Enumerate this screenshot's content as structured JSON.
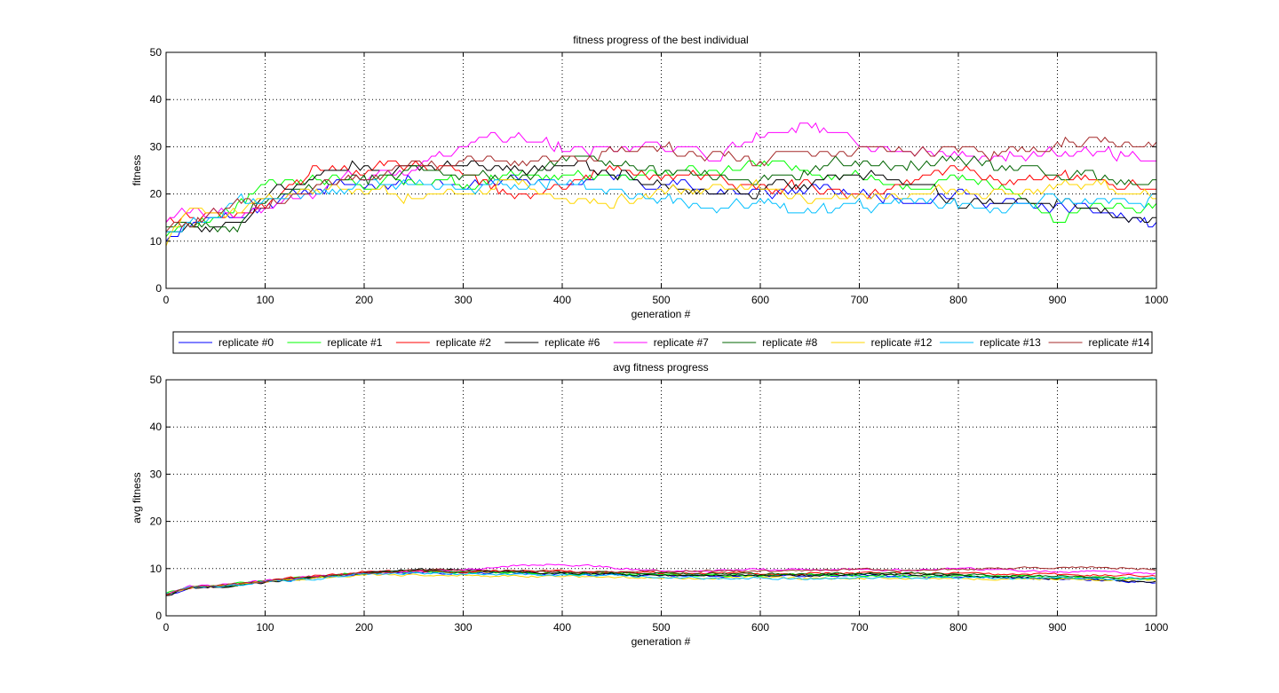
{
  "chart_data": [
    {
      "type": "line",
      "title": "fitness progress of the best individual",
      "xlabel": "generation #",
      "ylabel": "fitness",
      "xlim": [
        0,
        1000
      ],
      "ylim": [
        0,
        50
      ],
      "xticks": [
        0,
        100,
        200,
        300,
        400,
        500,
        600,
        700,
        800,
        900,
        1000
      ],
      "yticks": [
        0,
        10,
        20,
        30,
        40,
        50
      ],
      "grid": true,
      "series": [
        {
          "name": "replicate #0",
          "color": "#0000ff",
          "x": [
            0,
            25,
            50,
            75,
            100,
            150,
            200,
            250,
            300,
            350,
            400,
            450,
            500,
            550,
            600,
            650,
            700,
            750,
            800,
            850,
            900,
            950,
            1000
          ],
          "y": [
            11,
            14,
            16,
            15,
            18,
            21,
            22,
            23,
            22,
            23,
            22,
            24,
            22,
            21,
            20,
            21,
            20,
            19,
            20,
            18,
            17,
            16,
            13
          ]
        },
        {
          "name": "replicate #1",
          "color": "#00ff00",
          "x": [
            0,
            25,
            50,
            75,
            100,
            150,
            200,
            250,
            300,
            350,
            400,
            450,
            500,
            550,
            600,
            650,
            700,
            750,
            800,
            850,
            900,
            950,
            1000
          ],
          "y": [
            12,
            13,
            15,
            17,
            22,
            23,
            22,
            23,
            22,
            24,
            24,
            23,
            24,
            25,
            26,
            25,
            24,
            22,
            23,
            21,
            14,
            18,
            17
          ]
        },
        {
          "name": "replicate #2",
          "color": "#ff0000",
          "x": [
            0,
            25,
            50,
            75,
            100,
            150,
            200,
            250,
            300,
            350,
            400,
            450,
            500,
            550,
            600,
            650,
            700,
            750,
            800,
            850,
            900,
            950,
            1000
          ],
          "y": [
            13,
            15,
            15,
            16,
            17,
            25,
            25,
            26,
            24,
            19,
            22,
            25,
            24,
            23,
            21,
            22,
            19,
            22,
            26,
            22,
            24,
            22,
            21
          ]
        },
        {
          "name": "replicate #6",
          "color": "#000000",
          "x": [
            0,
            25,
            50,
            75,
            100,
            150,
            200,
            250,
            300,
            350,
            400,
            450,
            500,
            550,
            600,
            650,
            700,
            750,
            800,
            850,
            900,
            950,
            1000
          ],
          "y": [
            12,
            13,
            13,
            14,
            20,
            23,
            27,
            25,
            26,
            25,
            26,
            25,
            22,
            20,
            21,
            23,
            24,
            22,
            18,
            19,
            18,
            16,
            15
          ]
        },
        {
          "name": "replicate #7",
          "color": "#ff00ff",
          "x": [
            0,
            25,
            50,
            75,
            100,
            150,
            200,
            250,
            300,
            350,
            400,
            450,
            500,
            550,
            600,
            650,
            700,
            750,
            800,
            850,
            900,
            950,
            1000
          ],
          "y": [
            14,
            17,
            16,
            16,
            17,
            20,
            24,
            25,
            31,
            33,
            30,
            30,
            30,
            28,
            32,
            35,
            30,
            29,
            28,
            28,
            29,
            29,
            27
          ]
        },
        {
          "name": "replicate #8",
          "color": "#006400",
          "x": [
            0,
            25,
            50,
            75,
            100,
            150,
            200,
            250,
            300,
            350,
            400,
            450,
            500,
            550,
            600,
            650,
            700,
            750,
            800,
            850,
            900,
            950,
            1000
          ],
          "y": [
            12,
            14,
            13,
            14,
            19,
            22,
            23,
            25,
            24,
            23,
            27,
            27,
            25,
            24,
            23,
            25,
            27,
            26,
            27,
            26,
            24,
            23,
            22
          ]
        },
        {
          "name": "replicate #12",
          "color": "#ffd700",
          "x": [
            0,
            25,
            50,
            75,
            100,
            150,
            200,
            250,
            300,
            350,
            400,
            450,
            500,
            550,
            600,
            650,
            700,
            750,
            800,
            850,
            900,
            950,
            1000
          ],
          "y": [
            10,
            18,
            15,
            17,
            19,
            20,
            21,
            19,
            20,
            23,
            19,
            18,
            20,
            21,
            22,
            19,
            19,
            19,
            21,
            20,
            21,
            22,
            20
          ]
        },
        {
          "name": "replicate #13",
          "color": "#00bfff",
          "x": [
            0,
            25,
            50,
            75,
            100,
            150,
            200,
            250,
            300,
            350,
            400,
            450,
            500,
            550,
            600,
            650,
            700,
            750,
            800,
            850,
            900,
            950,
            1000
          ],
          "y": [
            13,
            14,
            15,
            19,
            19,
            20,
            22,
            22,
            21,
            22,
            23,
            20,
            19,
            17,
            18,
            16,
            17,
            18,
            18,
            17,
            19,
            18,
            19
          ]
        },
        {
          "name": "replicate #14",
          "color": "#a52a2a",
          "x": [
            0,
            25,
            50,
            75,
            100,
            150,
            200,
            250,
            300,
            350,
            400,
            450,
            500,
            550,
            600,
            650,
            700,
            750,
            800,
            850,
            900,
            950,
            1000
          ],
          "y": [
            13,
            15,
            16,
            18,
            18,
            21,
            23,
            26,
            27,
            26,
            28,
            29,
            30,
            28,
            27,
            28,
            29,
            29,
            29,
            28,
            31,
            31,
            30
          ]
        }
      ]
    },
    {
      "type": "line",
      "title": "avg fitness progress",
      "xlabel": "generation #",
      "ylabel": "avg fitness",
      "xlim": [
        0,
        1000
      ],
      "ylim": [
        0,
        50
      ],
      "xticks": [
        0,
        100,
        200,
        300,
        400,
        500,
        600,
        700,
        800,
        900,
        1000
      ],
      "yticks": [
        0,
        10,
        20,
        30,
        40,
        50
      ],
      "grid": true,
      "series": [
        {
          "name": "replicate #0",
          "color": "#0000ff",
          "x": [
            0,
            25,
            50,
            75,
            100,
            150,
            200,
            250,
            300,
            350,
            400,
            450,
            500,
            550,
            600,
            650,
            700,
            750,
            800,
            850,
            900,
            950,
            1000
          ],
          "y": [
            4.5,
            6.0,
            6.2,
            6.8,
            7.2,
            8.0,
            9.0,
            9.2,
            9.0,
            9.0,
            8.8,
            8.7,
            8.6,
            8.4,
            8.5,
            8.4,
            8.6,
            8.4,
            8.3,
            8.0,
            7.8,
            7.5,
            7.0
          ]
        },
        {
          "name": "replicate #1",
          "color": "#00ff00",
          "x": [
            0,
            25,
            50,
            75,
            100,
            150,
            200,
            250,
            300,
            350,
            400,
            450,
            500,
            550,
            600,
            650,
            700,
            750,
            800,
            850,
            900,
            950,
            1000
          ],
          "y": [
            4.8,
            6.1,
            6.3,
            6.9,
            7.4,
            8.2,
            9.2,
            9.3,
            9.1,
            9.2,
            9.0,
            8.9,
            8.8,
            8.7,
            8.6,
            8.7,
            8.6,
            8.5,
            8.4,
            8.3,
            8.1,
            8.0,
            7.8
          ]
        },
        {
          "name": "replicate #2",
          "color": "#ff0000",
          "x": [
            0,
            25,
            50,
            75,
            100,
            150,
            200,
            250,
            300,
            350,
            400,
            450,
            500,
            550,
            600,
            650,
            700,
            750,
            800,
            850,
            900,
            950,
            1000
          ],
          "y": [
            4.6,
            5.9,
            6.1,
            6.7,
            7.3,
            8.5,
            9.4,
            9.5,
            9.3,
            9.6,
            9.4,
            9.2,
            9.0,
            9.1,
            8.9,
            9.0,
            9.1,
            8.9,
            9.0,
            8.7,
            8.8,
            8.6,
            8.4
          ]
        },
        {
          "name": "replicate #6",
          "color": "#000000",
          "x": [
            0,
            25,
            50,
            75,
            100,
            150,
            200,
            250,
            300,
            350,
            400,
            450,
            500,
            550,
            600,
            650,
            700,
            750,
            800,
            850,
            900,
            950,
            1000
          ],
          "y": [
            4.4,
            6.0,
            6.0,
            6.6,
            7.1,
            8.1,
            9.3,
            9.9,
            9.6,
            9.4,
            9.0,
            8.8,
            8.5,
            8.7,
            8.6,
            8.5,
            8.9,
            8.7,
            8.5,
            8.1,
            8.0,
            7.6,
            7.2
          ]
        },
        {
          "name": "replicate #7",
          "color": "#ff00ff",
          "x": [
            0,
            25,
            50,
            75,
            100,
            150,
            200,
            250,
            300,
            350,
            400,
            450,
            500,
            550,
            600,
            650,
            700,
            750,
            800,
            850,
            900,
            950,
            1000
          ],
          "y": [
            4.7,
            6.2,
            6.4,
            6.9,
            7.5,
            8.4,
            9.1,
            9.4,
            9.8,
            10.6,
            11.0,
            10.2,
            9.6,
            9.5,
            9.8,
            9.7,
            9.9,
            9.6,
            10.0,
            9.6,
            9.4,
            9.3,
            9.0
          ]
        },
        {
          "name": "replicate #8",
          "color": "#006400",
          "x": [
            0,
            25,
            50,
            75,
            100,
            150,
            200,
            250,
            300,
            350,
            400,
            450,
            500,
            550,
            600,
            650,
            700,
            750,
            800,
            850,
            900,
            950,
            1000
          ],
          "y": [
            4.5,
            6.0,
            6.1,
            6.7,
            7.2,
            8.2,
            9.0,
            9.6,
            9.4,
            9.2,
            9.3,
            9.1,
            9.0,
            8.9,
            8.8,
            8.9,
            9.0,
            8.9,
            8.8,
            8.6,
            8.4,
            8.2,
            8.0
          ]
        },
        {
          "name": "replicate #12",
          "color": "#ffd700",
          "x": [
            0,
            25,
            50,
            75,
            100,
            150,
            200,
            250,
            300,
            350,
            400,
            450,
            500,
            550,
            600,
            650,
            700,
            750,
            800,
            850,
            900,
            950,
            1000
          ],
          "y": [
            4.6,
            6.1,
            6.2,
            6.8,
            7.3,
            7.9,
            8.8,
            8.6,
            8.5,
            8.4,
            8.3,
            8.2,
            8.1,
            8.0,
            8.1,
            7.9,
            8.0,
            8.0,
            7.9,
            7.8,
            7.8,
            7.6,
            7.5
          ]
        },
        {
          "name": "replicate #13",
          "color": "#00bfff",
          "x": [
            0,
            25,
            50,
            75,
            100,
            150,
            200,
            250,
            300,
            350,
            400,
            450,
            500,
            550,
            600,
            650,
            700,
            750,
            800,
            850,
            900,
            950,
            1000
          ],
          "y": [
            4.7,
            6.0,
            6.2,
            6.7,
            7.2,
            7.8,
            8.9,
            9.0,
            8.9,
            8.8,
            8.7,
            8.5,
            8.3,
            7.9,
            8.0,
            7.8,
            8.1,
            8.0,
            8.1,
            7.9,
            8.0,
            7.9,
            7.8
          ]
        },
        {
          "name": "replicate #14",
          "color": "#a52a2a",
          "x": [
            0,
            25,
            50,
            75,
            100,
            150,
            200,
            250,
            300,
            350,
            400,
            450,
            500,
            550,
            600,
            650,
            700,
            750,
            800,
            850,
            900,
            950,
            1000
          ],
          "y": [
            4.6,
            6.1,
            6.3,
            6.9,
            7.4,
            8.3,
            9.2,
            9.7,
            9.5,
            9.4,
            9.3,
            9.4,
            9.5,
            9.6,
            9.5,
            9.6,
            9.8,
            9.7,
            9.9,
            10.0,
            10.4,
            10.2,
            9.8
          ]
        }
      ]
    }
  ]
}
